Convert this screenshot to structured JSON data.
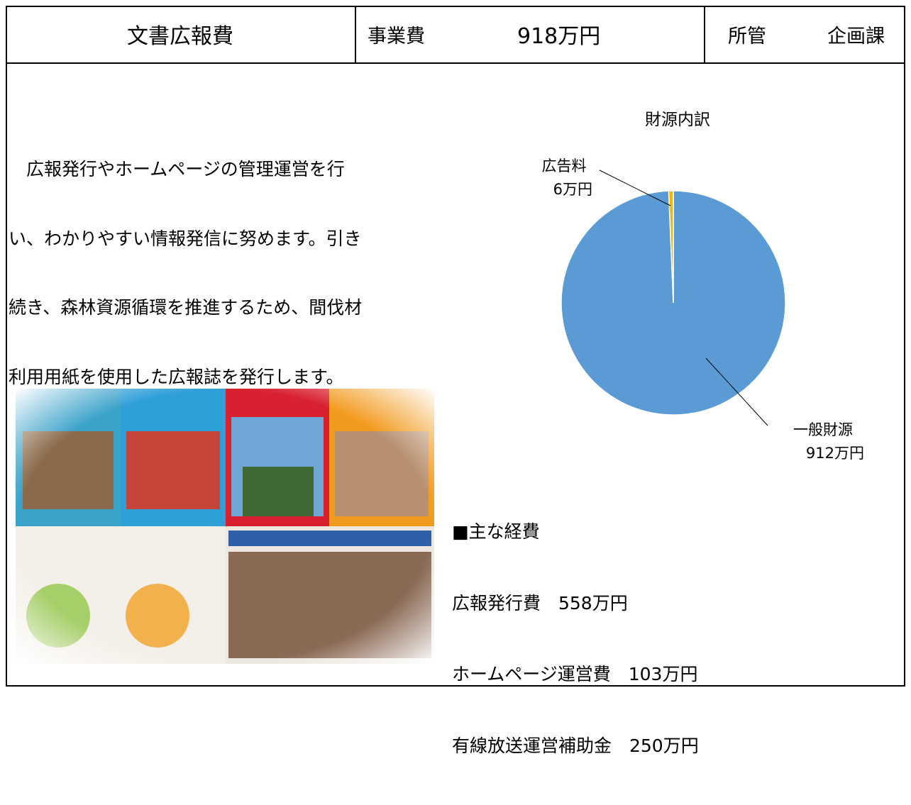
{
  "header": {
    "title": "文書広報費",
    "cost_label": "事業費",
    "cost_value": "918万円",
    "dept_label": "所管",
    "dept_value": "企画課"
  },
  "description": [
    "広報発行やホームページの管理運営を行",
    "い、わかりやすい情報発信に努めます。引き",
    "続き、森林資源循環を推進するため、間伐材",
    "利用用紙を使用した広報誌を発行します。"
  ],
  "expenses": {
    "heading": "■主な経費",
    "items": [
      "広報発行費　558万円",
      "ホームページ運営費　103万円",
      "有線放送運営補助金　250万円"
    ]
  },
  "chart_data": {
    "type": "pie",
    "title": "財源内訳",
    "categories": [
      "一般財源",
      "広告料"
    ],
    "values": [
      912,
      6
    ],
    "value_labels": [
      "912万円",
      "6万円"
    ],
    "colors": [
      "#5b9bd5",
      "#f2b800"
    ]
  }
}
